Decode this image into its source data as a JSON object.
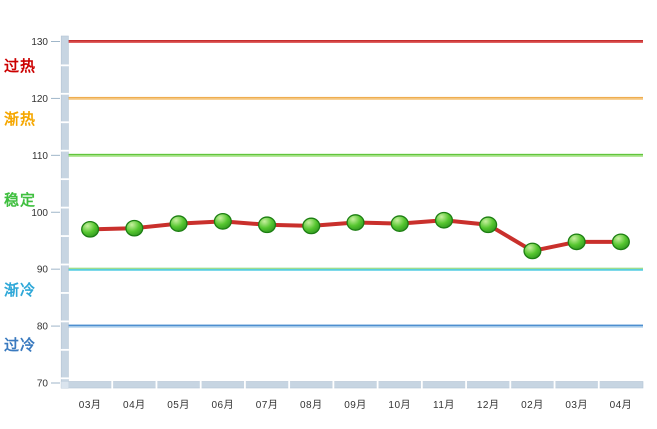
{
  "chart_data": {
    "type": "line",
    "title": "",
    "xlabel": "",
    "ylabel": "",
    "legend_position": "none",
    "grid": "colored-trendlines-only",
    "categories": [
      "03月",
      "04月",
      "05月",
      "06月",
      "07月",
      "08月",
      "09月",
      "10月",
      "11月",
      "12月",
      "02月",
      "03月",
      "04月"
    ],
    "series": [
      {
        "name": "monthly-index",
        "values": [
          97.0,
          97.2,
          98.0,
          98.4,
          97.8,
          97.6,
          98.2,
          98.0,
          98.6,
          97.8,
          93.2,
          94.8,
          94.8
        ],
        "line_color": "#C9302C",
        "marker_gradient": [
          "#C8F0A0",
          "#55C62F",
          "#2F9420"
        ],
        "marker_border": "#1C7E12"
      }
    ],
    "y_axis": {
      "min": 70,
      "max": 130,
      "step": 10,
      "tick_labels": [
        "130",
        "120",
        "110",
        "100",
        "90",
        "80",
        "70"
      ],
      "tick_text_color": "#333333"
    },
    "x_axis": {
      "label_text_color": "#333333"
    },
    "trendlines": [
      {
        "value": 130,
        "label": "过热",
        "label_color": "#CC0000",
        "line_colors": [
          "#C62D2D",
          "#E06060"
        ]
      },
      {
        "value": 120,
        "label": "渐热",
        "label_color": "#F5A700",
        "line_colors": [
          "#EFAD4E",
          "#F7CE8F"
        ]
      },
      {
        "value": 110,
        "label": "稳定",
        "label_color": "#3FBF3F",
        "line_colors": [
          "#62C53C",
          "#A8E388"
        ]
      },
      {
        "value": 90,
        "label": "渐冷",
        "label_color": "#2FA8D8",
        "line_colors": [
          "#9FDD8F",
          "#3EC6DE"
        ]
      },
      {
        "value": 80,
        "label": "过冷",
        "label_color": "#3A7ABF",
        "line_colors": [
          "#4D8FD0",
          "#9FC6E8"
        ]
      }
    ],
    "axis_bar": {
      "fill": "#C7D5E2",
      "border": "#B3C4D4",
      "corner_fill": "#DAE4EE",
      "tick_dash_color": "#9FB6C9"
    }
  }
}
